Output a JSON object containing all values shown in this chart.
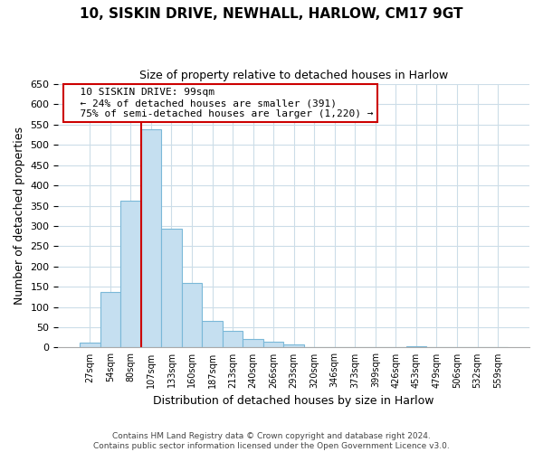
{
  "title": "10, SISKIN DRIVE, NEWHALL, HARLOW, CM17 9GT",
  "subtitle": "Size of property relative to detached houses in Harlow",
  "xlabel": "Distribution of detached houses by size in Harlow",
  "ylabel": "Number of detached properties",
  "bin_labels": [
    "27sqm",
    "54sqm",
    "80sqm",
    "107sqm",
    "133sqm",
    "160sqm",
    "187sqm",
    "213sqm",
    "240sqm",
    "266sqm",
    "293sqm",
    "320sqm",
    "346sqm",
    "373sqm",
    "399sqm",
    "426sqm",
    "453sqm",
    "479sqm",
    "506sqm",
    "532sqm",
    "559sqm"
  ],
  "bar_heights": [
    12,
    137,
    363,
    538,
    294,
    160,
    66,
    41,
    22,
    14,
    8,
    0,
    0,
    0,
    0,
    0,
    3,
    0,
    0,
    0,
    2
  ],
  "bar_color": "#c5dff0",
  "bar_edge_color": "#7ab8d8",
  "vline_bin_index": 3,
  "vline_color": "#cc0000",
  "ylim": [
    0,
    650
  ],
  "yticks": [
    0,
    50,
    100,
    150,
    200,
    250,
    300,
    350,
    400,
    450,
    500,
    550,
    600,
    650
  ],
  "annotation_title": "10 SISKIN DRIVE: 99sqm",
  "annotation_line1": "← 24% of detached houses are smaller (391)",
  "annotation_line2": "75% of semi-detached houses are larger (1,220) →",
  "footer_line1": "Contains HM Land Registry data © Crown copyright and database right 2024.",
  "footer_line2": "Contains public sector information licensed under the Open Government Licence v3.0.",
  "background_color": "#ffffff",
  "grid_color": "#ccdde8",
  "annotation_box_color": "#ffffff",
  "annotation_box_edge": "#cc0000"
}
